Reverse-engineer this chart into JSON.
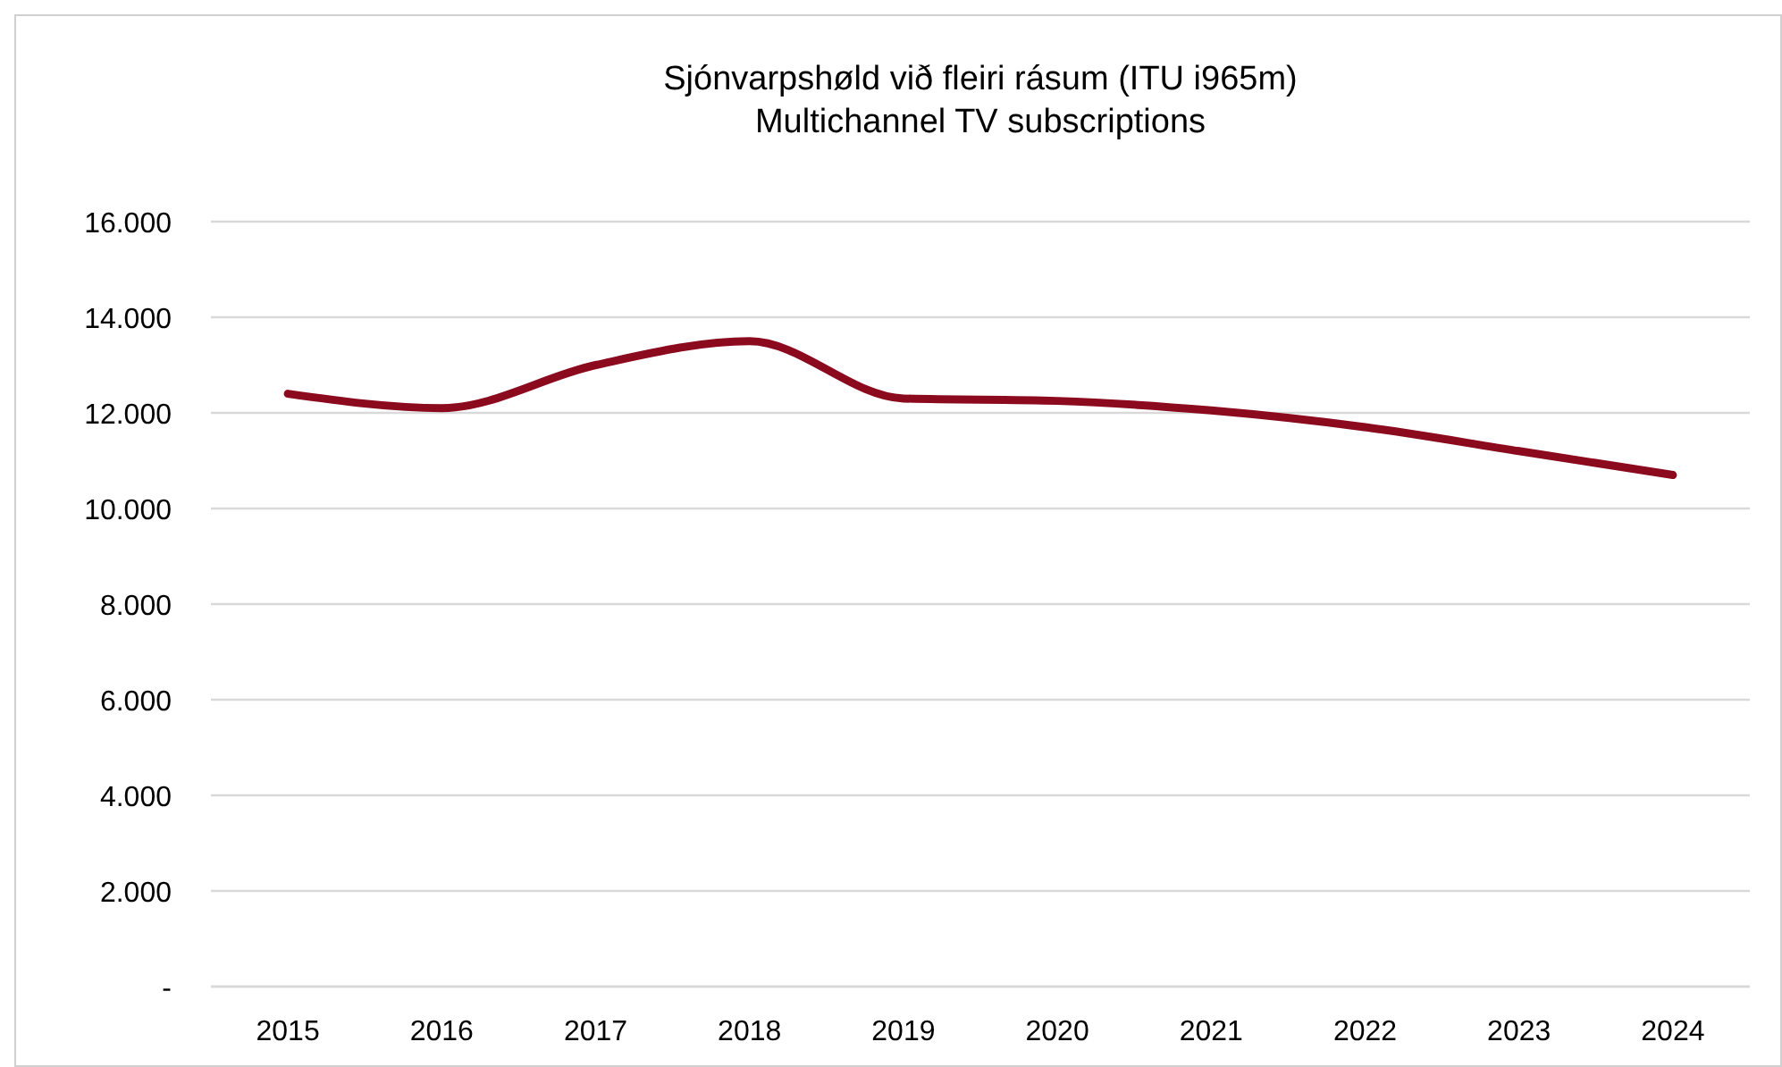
{
  "chart_data": {
    "type": "line",
    "title": "Sjónvarpshøld við fleiri rásum (ITU i965m)",
    "subtitle": "Multichannel TV subscriptions",
    "categories": [
      "2015",
      "2016",
      "2017",
      "2018",
      "2019",
      "2020",
      "2021",
      "2022",
      "2023",
      "2024"
    ],
    "series": [
      {
        "color": "#8b0a1e",
        "values": [
          12400,
          12100,
          13000,
          13500,
          12300,
          12250,
          12050,
          11700,
          11200,
          10700
        ]
      }
    ],
    "ylim": [
      0,
      16000
    ],
    "yticks": [
      {
        "value": 0,
        "label": "-"
      },
      {
        "value": 2000,
        "label": "2.000"
      },
      {
        "value": 4000,
        "label": "4.000"
      },
      {
        "value": 6000,
        "label": "6.000"
      },
      {
        "value": 8000,
        "label": "8.000"
      },
      {
        "value": 10000,
        "label": "10.000"
      },
      {
        "value": 12000,
        "label": "12.000"
      },
      {
        "value": 14000,
        "label": "14.000"
      },
      {
        "value": 16000,
        "label": "16.000"
      }
    ],
    "grid": "y",
    "marker": "none",
    "line_style": "solid"
  }
}
